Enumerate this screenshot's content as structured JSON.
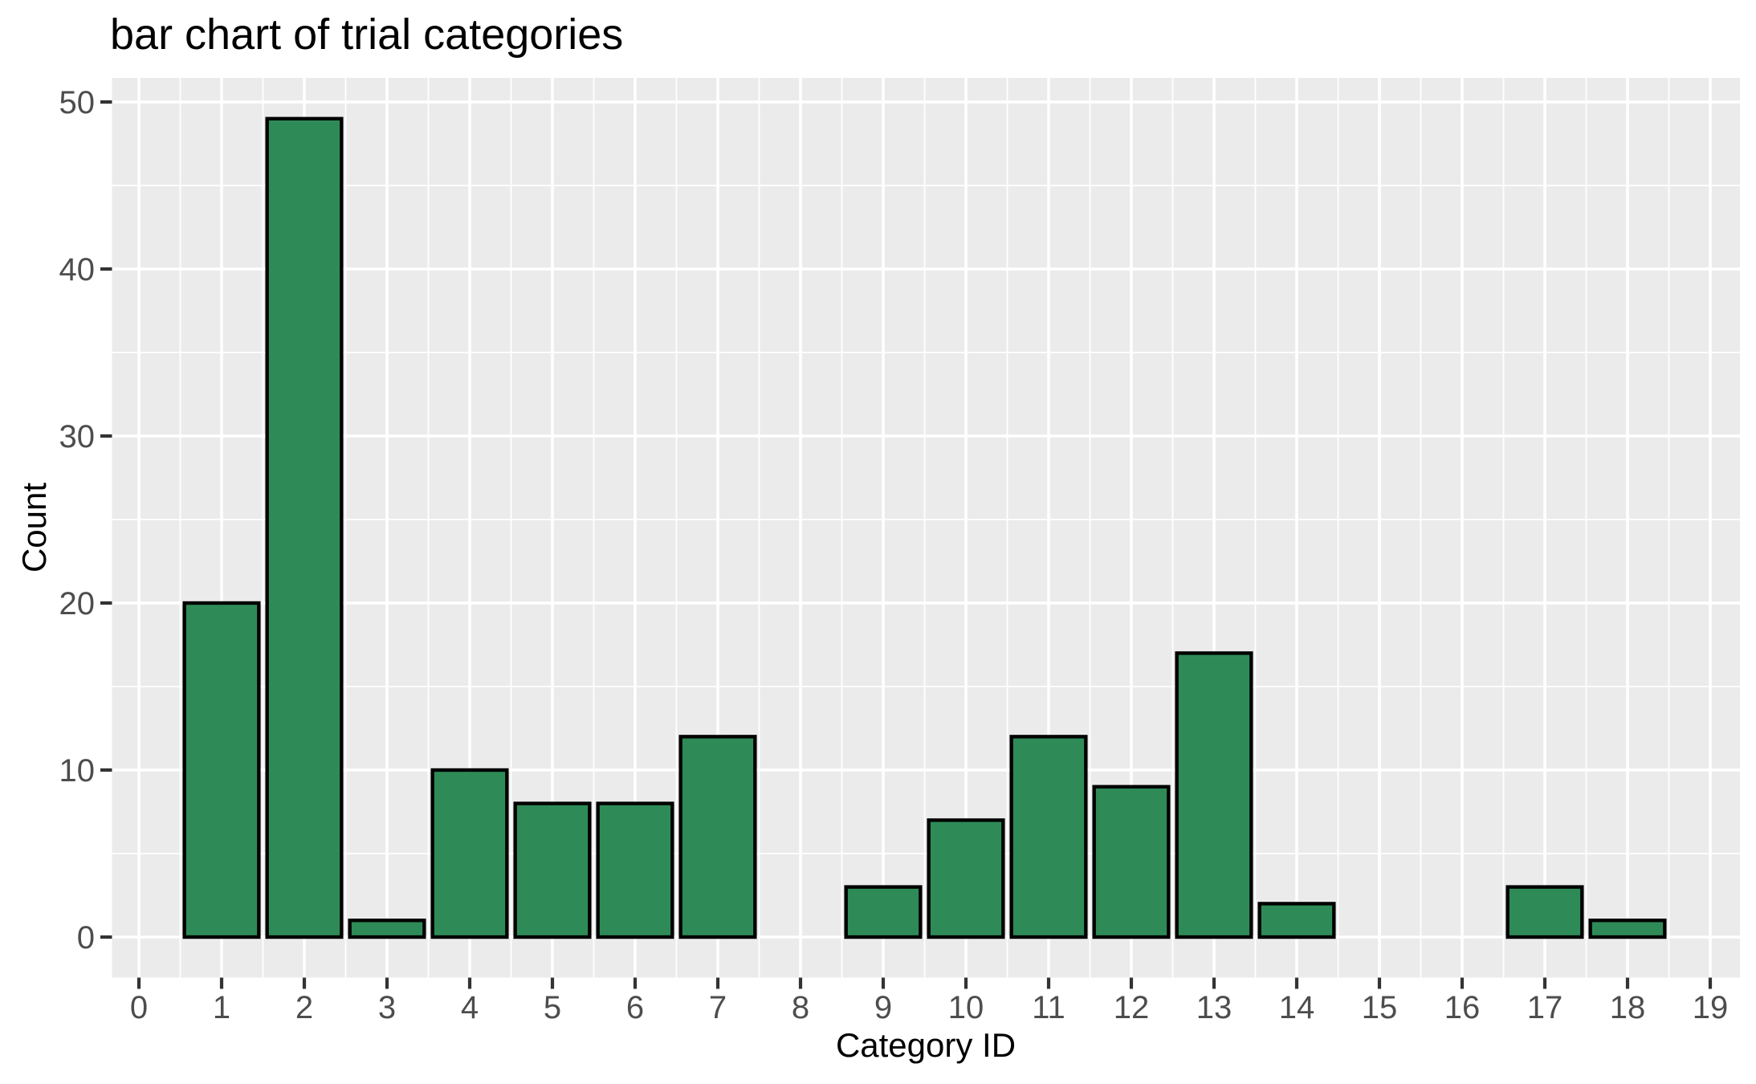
{
  "chart_data": {
    "type": "bar",
    "title": "bar chart of trial categories",
    "xlabel": "Category ID",
    "ylabel": "Count",
    "categories": [
      0,
      1,
      2,
      3,
      4,
      5,
      6,
      7,
      8,
      9,
      10,
      11,
      12,
      13,
      14,
      15,
      16,
      17,
      18,
      19
    ],
    "values": [
      0,
      20,
      49,
      1,
      10,
      8,
      8,
      12,
      0,
      3,
      7,
      12,
      9,
      17,
      2,
      0,
      0,
      3,
      1,
      0
    ],
    "x_tick_labels": [
      "0",
      "1",
      "2",
      "3",
      "4",
      "5",
      "6",
      "7",
      "8",
      "9",
      "10",
      "11",
      "12",
      "13",
      "14",
      "15",
      "16",
      "17",
      "18",
      "19"
    ],
    "y_tick_values": [
      0,
      10,
      20,
      30,
      40,
      50
    ],
    "y_minor_values": [
      5,
      15,
      25,
      35,
      45
    ],
    "ylim": [
      -2.45,
      51.45
    ],
    "xlim": [
      -0.32,
      19.36
    ],
    "bar_width": 0.9,
    "grid": "major and minor, white on gray panel",
    "legend": "none",
    "colors": {
      "bar_fill": "#2E8B57",
      "bar_stroke": "#000000",
      "panel_background": "#EBEBEB",
      "gridline": "#FFFFFF",
      "tick_mark": "#333333",
      "tick_label": "#4D4D4D",
      "title_text": "#000000",
      "page_background": "#FFFFFF"
    }
  }
}
